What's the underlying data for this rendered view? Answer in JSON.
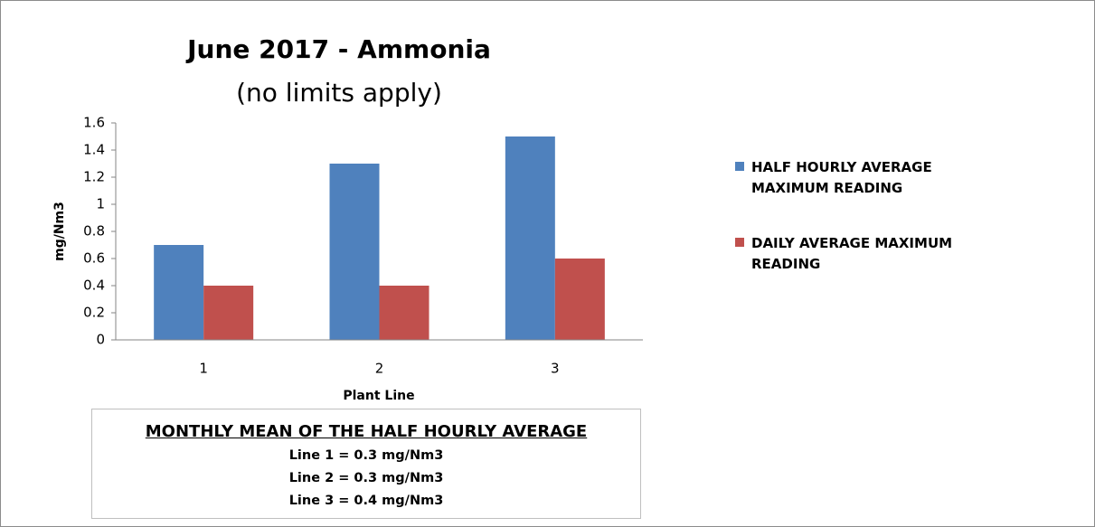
{
  "chart_data": {
    "type": "bar",
    "title": "June 2017 - Ammonia",
    "subtitle": "(no limits apply)",
    "x_label": "Plant Line",
    "y_label": "mg/Nm3",
    "categories": [
      "1",
      "2",
      "3"
    ],
    "series": [
      {
        "name": "HALF HOURLY AVERAGE MAXIMUM READING",
        "color": "#4f81bd",
        "values": [
          0.7,
          1.3,
          1.5
        ]
      },
      {
        "name": "DAILY AVERAGE MAXIMUM READING",
        "color": "#c0504d",
        "values": [
          0.4,
          0.4,
          0.6
        ]
      }
    ],
    "ylim": [
      0,
      1.6
    ],
    "yticks": [
      0,
      0.2,
      0.4,
      0.6,
      0.8,
      1,
      1.2,
      1.4,
      1.6
    ],
    "grid": false,
    "legend": "right",
    "annotation": {
      "title": "MONTHLY MEAN OF THE HALF HOURLY AVERAGE",
      "lines": [
        "Line 1 = 0.3 mg/Nm3",
        "Line 2 = 0.3 mg/Nm3",
        "Line 3 = 0.4 mg/Nm3"
      ]
    }
  }
}
